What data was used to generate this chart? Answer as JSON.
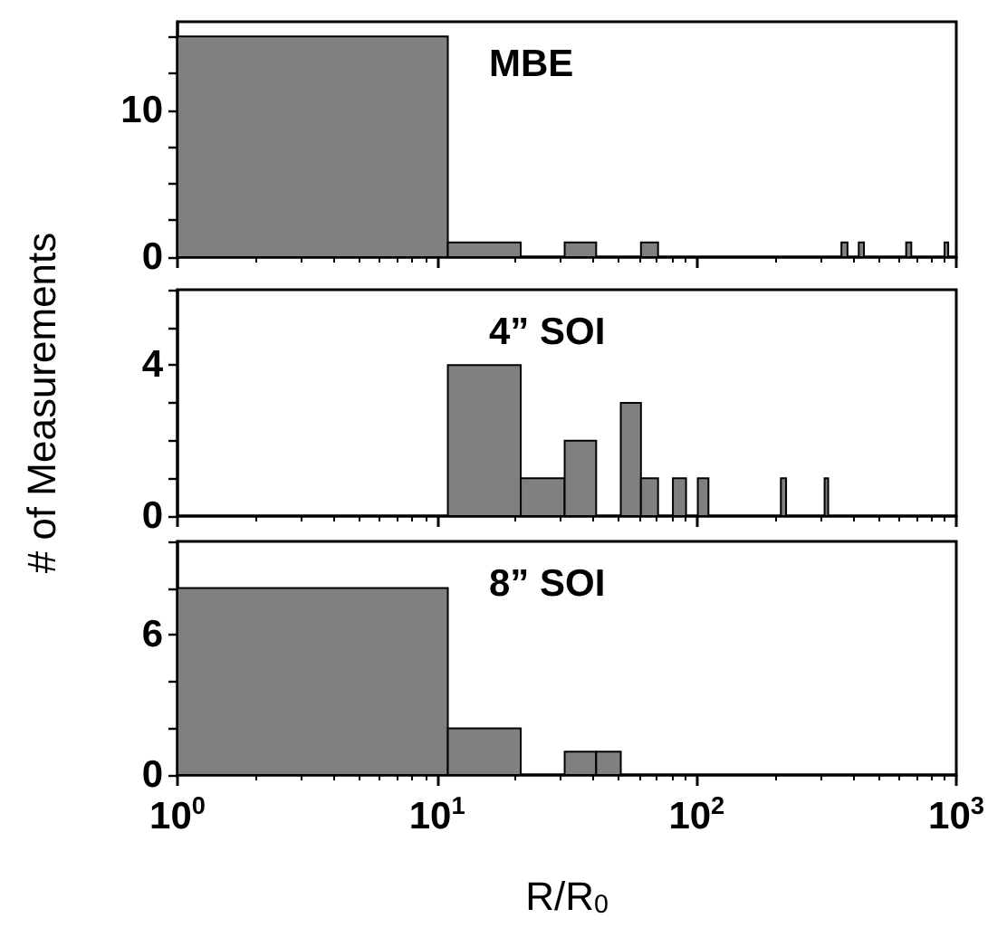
{
  "chart_data": [
    {
      "type": "histogram",
      "title": "MBE",
      "bins": [
        1,
        11,
        21,
        31,
        41,
        61,
        71,
        361,
        381,
        421,
        441,
        641,
        671,
        901,
        931
      ],
      "values": [
        15,
        1,
        0,
        1,
        0,
        1,
        0,
        1,
        0,
        1,
        0,
        1,
        0,
        1
      ],
      "color": "#808080",
      "xlim": [
        1,
        1000
      ],
      "xticks": [
        1,
        10,
        100,
        1000
      ],
      "ylim": [
        0,
        16
      ],
      "yticks": [
        0,
        {
          "value": 2.5,
          "label": null
        },
        {
          "value": 5,
          "label": null
        },
        {
          "value": 7.5,
          "label": null
        },
        10,
        {
          "value": 12.5,
          "label": null
        },
        {
          "value": 15,
          "label": null
        }
      ],
      "log": "x",
      "tick_labels": "y",
      "grid": false
    },
    {
      "type": "histogram",
      "title": "4” SOI",
      "ylabel": "# of Measurements",
      "bins": [
        11,
        21,
        31,
        41,
        51,
        61,
        71,
        81,
        91,
        101,
        111,
        211,
        221,
        311,
        321
      ],
      "values": [
        4,
        1,
        2,
        0,
        3,
        1,
        0,
        1,
        0,
        1,
        0,
        1,
        0,
        1
      ],
      "color": "#808080",
      "xlim": [
        1,
        1000
      ],
      "xticks": [
        1,
        10,
        100,
        1000
      ],
      "ylim": [
        0,
        6
      ],
      "yticks": [
        0,
        {
          "value": 1,
          "label": null
        },
        {
          "value": 2,
          "label": null
        },
        {
          "value": 3,
          "label": null
        },
        4,
        {
          "value": 5,
          "label": null
        },
        {
          "value": 6,
          "label": null
        }
      ],
      "log": "x",
      "tick_labels": "y",
      "grid": false
    },
    {
      "type": "histogram",
      "title": "8” SOI",
      "xlabel": "R/R$_{0}$",
      "bins": [
        1,
        11,
        21,
        31,
        41,
        51
      ],
      "values": [
        8,
        2,
        0,
        1,
        1
      ],
      "color": "#808080",
      "xlim": [
        1,
        1000
      ],
      "xticks": [
        {
          "value": 1,
          "label": "10$^{0}$"
        },
        {
          "value": 10,
          "label": "10$^{1}$"
        },
        {
          "value": 100,
          "label": "10$^{2}$"
        },
        {
          "value": 1000,
          "label": "10$^{3}$"
        }
      ],
      "ylim": [
        0,
        10
      ],
      "yticks": [
        0,
        {
          "value": 2,
          "label": null
        },
        {
          "value": 4,
          "label": null
        },
        6,
        {
          "value": 8,
          "label": null
        },
        {
          "value": 10,
          "label": null
        }
      ],
      "log": "x",
      "grid": false
    }
  ]
}
